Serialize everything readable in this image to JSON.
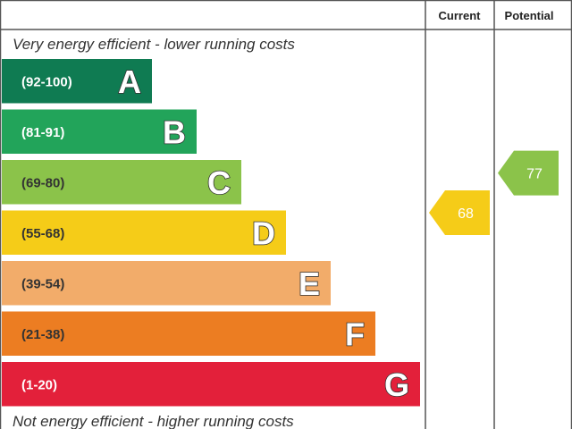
{
  "chart_data": {
    "type": "bar",
    "header": {
      "current_label": "Current",
      "potential_label": "Potential"
    },
    "top_note": "Very energy efficient - lower running costs",
    "bottom_note": "Not energy efficient - higher running costs",
    "bands": [
      {
        "letter": "A",
        "range": "(92-100)",
        "min": 92,
        "max": 100,
        "color": "#0f7b52",
        "text_color": "#ffffff"
      },
      {
        "letter": "B",
        "range": "(81-91)",
        "min": 81,
        "max": 91,
        "color": "#22a45a",
        "text_color": "#ffffff"
      },
      {
        "letter": "C",
        "range": "(69-80)",
        "min": 69,
        "max": 80,
        "color": "#8bc34a",
        "text_color": "#333333"
      },
      {
        "letter": "D",
        "range": "(55-68)",
        "min": 55,
        "max": 68,
        "color": "#f5cc18",
        "text_color": "#333333"
      },
      {
        "letter": "E",
        "range": "(39-54)",
        "min": 39,
        "max": 54,
        "color": "#f2ac6a",
        "text_color": "#333333"
      },
      {
        "letter": "F",
        "range": "(21-38)",
        "min": 21,
        "max": 38,
        "color": "#ec7d22",
        "text_color": "#333333"
      },
      {
        "letter": "G",
        "range": "(1-20)",
        "min": 1,
        "max": 20,
        "color": "#e3203a",
        "text_color": "#ffffff"
      }
    ],
    "ratings": {
      "current": {
        "value": 68,
        "label": "68",
        "color": "#f5cc18"
      },
      "potential": {
        "value": 77,
        "label": "77",
        "color": "#8bc34a"
      }
    }
  }
}
